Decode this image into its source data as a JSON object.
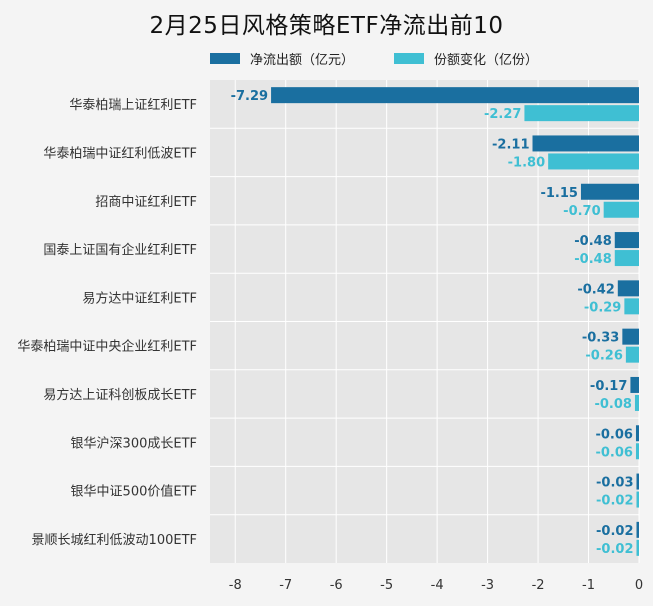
{
  "chart_data": {
    "type": "bar",
    "orientation": "horizontal",
    "title": "2月25日风格策略ETF净流出前10",
    "categories": [
      "华泰柏瑞上证红利ETF",
      "华泰柏瑞中证红利低波ETF",
      "招商中证红利ETF",
      "国泰上证国有企业红利ETF",
      "易方达中证红利ETF",
      "华泰柏瑞中证中央企业红利ETF",
      "易方达上证科创板成长ETF",
      "银华沪深300成长ETF",
      "银华中证500价值ETF",
      "景顺长城红利低波动100ETF"
    ],
    "series": [
      {
        "name": "净流出额（亿元）",
        "color": "#1a6fa0",
        "values": [
          -7.29,
          -2.11,
          -1.15,
          -0.48,
          -0.42,
          -0.33,
          -0.17,
          -0.06,
          -0.03,
          -0.02
        ],
        "labels": [
          "-7.29",
          "-2.11",
          "-1.15",
          "-0.48",
          "-0.42",
          "-0.33",
          "-0.17",
          "-0.06",
          "-0.03",
          "-0.02"
        ]
      },
      {
        "name": "份额变化（亿份）",
        "color": "#3fbfd3",
        "values": [
          -2.27,
          -1.8,
          -0.7,
          -0.48,
          -0.29,
          -0.26,
          -0.08,
          -0.06,
          -0.02,
          -0.02
        ],
        "labels": [
          "-2.27",
          "-1.80",
          "-0.70",
          "-0.48",
          "-0.29",
          "-0.26",
          "-0.08",
          "-0.06",
          "-0.02",
          "-0.02"
        ]
      }
    ],
    "xlim": [
      -8.5,
      0
    ],
    "xticks": [
      "-8",
      "-7",
      "-6",
      "-5",
      "-4",
      "-3",
      "-2",
      "-1",
      "0"
    ],
    "xtick_values": [
      -8,
      -7,
      -6,
      -5,
      -4,
      -3,
      -2,
      -1,
      0
    ],
    "grid": true,
    "legend_position": "top"
  }
}
